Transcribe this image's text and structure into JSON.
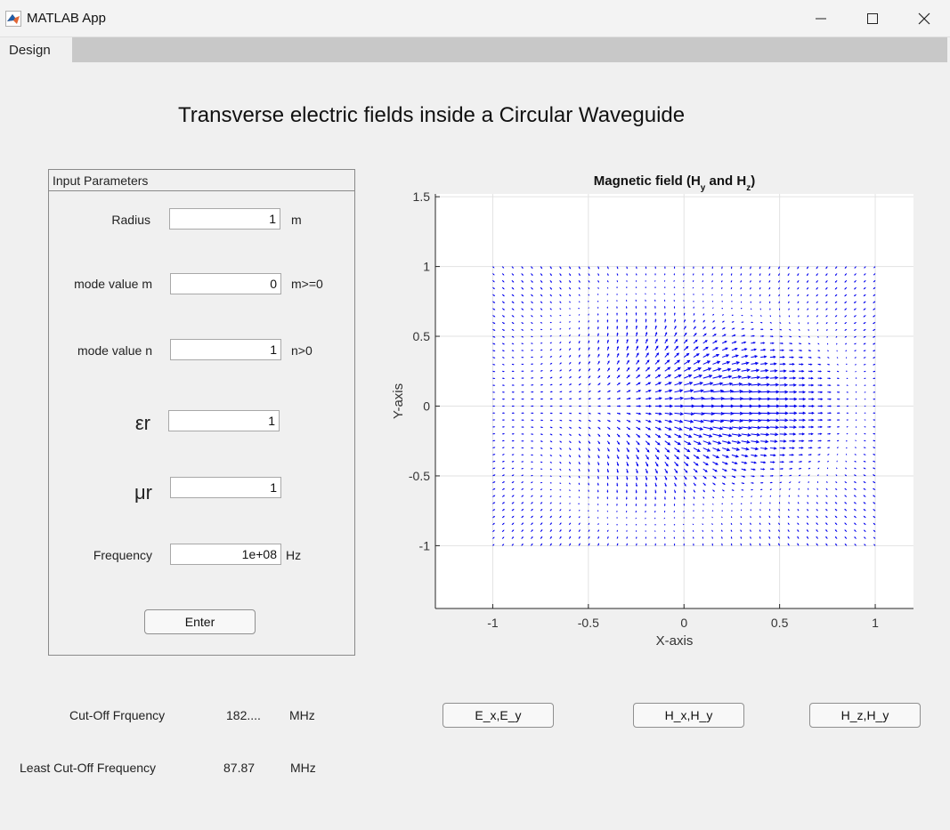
{
  "window": {
    "title": "MATLAB App",
    "icon": "matlab-icon",
    "controls": [
      "minimize-icon",
      "maximize-icon",
      "close-icon"
    ]
  },
  "tabs": [
    {
      "label": "Design",
      "active": true
    }
  ],
  "heading": "Transverse electric fields inside a Circular Waveguide",
  "panel": {
    "title": "Input Parameters",
    "fields": [
      {
        "label": "Radius",
        "value": "1",
        "unit": "m"
      },
      {
        "label": "mode value m",
        "value": "0",
        "unit": "m>=0"
      },
      {
        "label": "mode value n",
        "value": "1",
        "unit": "n>0"
      },
      {
        "label": "εr",
        "value": "1",
        "unit": ""
      },
      {
        "label": "μr",
        "value": "1",
        "unit": ""
      },
      {
        "label": "Frequency",
        "value": "1e+08",
        "unit": "Hz"
      }
    ],
    "enter_label": "Enter"
  },
  "results": {
    "cutoff": {
      "label": "Cut-Off Frquency",
      "value": "182....",
      "unit": "MHz"
    },
    "least_cutoff": {
      "label": "Least Cut-Off Frequency",
      "value": "87.87",
      "unit": "MHz"
    }
  },
  "plot_buttons": [
    "E_x,E_y",
    "H_x,H_y",
    "H_z,H_y"
  ],
  "chart_data": {
    "type": "quiver",
    "title": "Magnetic field (H_y and H_z)",
    "title_parts": {
      "prefix": "Magnetic  field  (H",
      "sub1": "y",
      "mid": "  and  H",
      "sub2": "z",
      "suffix": ")"
    },
    "xlabel": "X-axis",
    "ylabel": "Y-axis",
    "xlim": [
      -1.3,
      1.2
    ],
    "ylim": [
      -1.45,
      1.52
    ],
    "xticks": [
      -1,
      -0.5,
      0,
      0.5,
      1
    ],
    "xtick_labels": [
      "-1",
      "-0.5",
      "0",
      "0.5",
      "1"
    ],
    "yticks": [
      -1,
      -0.5,
      0,
      0.5,
      1,
      1.5
    ],
    "ytick_labels": [
      "-1",
      "-0.5",
      "0",
      "0.5",
      "1",
      "1.5"
    ],
    "grid": true,
    "field_domain": {
      "x": [
        -1,
        1
      ],
      "y": [
        -1,
        1
      ],
      "nx": 41,
      "ny": 41
    },
    "arrow_color": "#0000ee"
  }
}
